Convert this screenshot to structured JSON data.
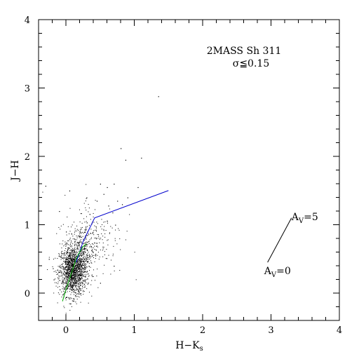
{
  "chart_data": {
    "type": "scatter",
    "title": "2MASS Sh 311",
    "subtitle": "σ≦0.15",
    "xlabel_main": "H−K",
    "xlabel_sub": "s",
    "ylabel": "J−H",
    "xlim": [
      -0.4,
      4.0
    ],
    "ylim": [
      -0.4,
      4.0
    ],
    "xticks": [
      0,
      1,
      2,
      3,
      4
    ],
    "yticks": [
      0,
      1,
      2,
      3,
      4
    ],
    "xtick_labels": [
      "0",
      "1",
      "2",
      "3",
      "4"
    ],
    "ytick_labels": [
      "0",
      "1",
      "2",
      "3",
      "4"
    ],
    "grid": false,
    "colors": {
      "points": "#000000",
      "giant_branch": "#0000cc",
      "dwarf_branch": "#00aa00",
      "reddening": "#000000"
    },
    "series": [
      {
        "type": "line",
        "x": [
          0.15,
          0.25,
          0.42,
          1.5
        ],
        "y": [
          0.45,
          0.75,
          1.1,
          1.5
        ]
      },
      {
        "type": "line",
        "x": [
          -0.05,
          0.0,
          0.05,
          0.1,
          0.15,
          0.2,
          0.25,
          0.3
        ],
        "y": [
          -0.12,
          0.05,
          0.2,
          0.35,
          0.5,
          0.6,
          0.68,
          0.72
        ]
      },
      {
        "type": "line",
        "x": [
          2.95,
          3.3
        ],
        "y": [
          0.45,
          1.1
        ]
      },
      {
        "type": "scatter",
        "clusters": [
          {
            "cx": 0.1,
            "cy": 0.32,
            "sx": 0.1,
            "sy": 0.18,
            "n": 1400
          },
          {
            "cx": 0.22,
            "cy": 0.62,
            "sx": 0.12,
            "sy": 0.2,
            "n": 300
          },
          {
            "cx": 0.4,
            "cy": 0.85,
            "sx": 0.22,
            "sy": 0.3,
            "n": 180
          }
        ],
        "extra_points": [
          [
            0.8,
            2.12
          ],
          [
            1.35,
            2.88
          ],
          [
            0.87,
            1.95
          ],
          [
            1.1,
            1.98
          ],
          [
            -0.3,
            1.57
          ],
          [
            0.05,
            1.5
          ],
          [
            0.7,
            1.6
          ],
          [
            0.6,
            1.55
          ],
          [
            0.55,
            1.45
          ],
          [
            0.75,
            1.35
          ],
          [
            0.62,
            1.28
          ],
          [
            0.82,
            1.3
          ],
          [
            0.5,
            1.6
          ],
          [
            0.68,
            1.18
          ],
          [
            0.9,
            1.4
          ],
          [
            -0.1,
            1.2
          ],
          [
            0.0,
            0.9
          ],
          [
            -0.25,
            0.5
          ],
          [
            0.5,
            0.15
          ],
          [
            0.7,
            0.4
          ],
          [
            1.05,
            1.55
          ],
          [
            0.3,
            1.4
          ],
          [
            0.45,
            1.35
          ],
          [
            -0.18,
            0.2
          ],
          [
            0.72,
            1.0
          ]
        ]
      }
    ],
    "annotations": [
      {
        "text": "A",
        "sub": "V",
        "rest": "=5",
        "x": 3.3,
        "y": 1.12
      },
      {
        "text": "A",
        "sub": "V",
        "rest": "=0",
        "x": 2.9,
        "y": 0.33
      }
    ]
  }
}
